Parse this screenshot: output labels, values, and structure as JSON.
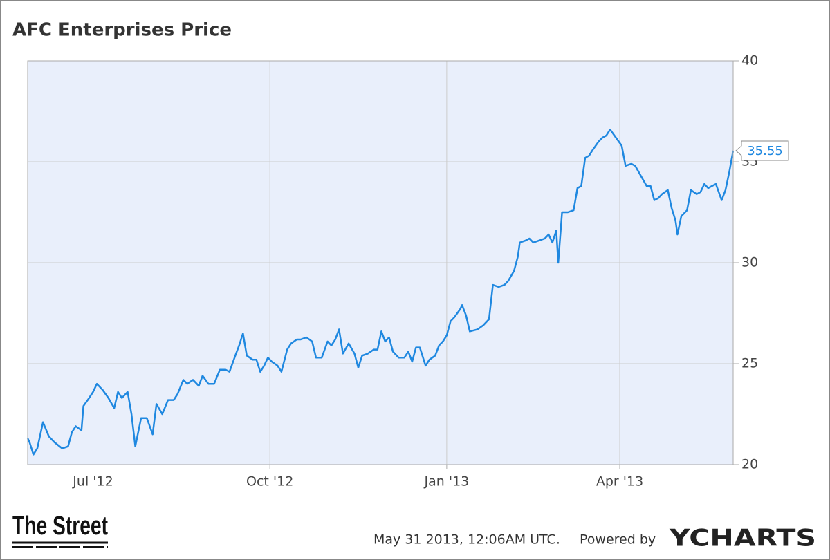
{
  "chart_data": {
    "type": "line",
    "title": "AFC Enterprises Price",
    "x": [
      0,
      1,
      3,
      5,
      8,
      11,
      14,
      18,
      21,
      23,
      25,
      28,
      29,
      32,
      34,
      36,
      39,
      42,
      45,
      47,
      49,
      52,
      54,
      56,
      59,
      62,
      65,
      67,
      70,
      73,
      76,
      78,
      81,
      83,
      86,
      89,
      91,
      94,
      97,
      100,
      103,
      105,
      108,
      110,
      112,
      114,
      117,
      119,
      121,
      123,
      125,
      127,
      130,
      132,
      135,
      137,
      140,
      142,
      145,
      148,
      150,
      153,
      156,
      158,
      160,
      162,
      164,
      167,
      170,
      172,
      174,
      177,
      180,
      182,
      184,
      186,
      188,
      190,
      193,
      196,
      198,
      200,
      202,
      204,
      207,
      209,
      212,
      214,
      216,
      218,
      220,
      222,
      225,
      226,
      228,
      230,
      234,
      237,
      240,
      242,
      245,
      248,
      250,
      253,
      255,
      256,
      259,
      261,
      263,
      266,
      269,
      271,
      273,
      275,
      276,
      278,
      281,
      284,
      286,
      288,
      290,
      292,
      294,
      297,
      299,
      301,
      303,
      306,
      309,
      311,
      314,
      316,
      319,
      322,
      324,
      326,
      328,
      330,
      333,
      335,
      337,
      338,
      340,
      343,
      345,
      348,
      350,
      352,
      354,
      356,
      358,
      361,
      363,
      365,
      367
    ],
    "series": [
      {
        "name": "AFC Enterprises Price",
        "color": "#1f88e0",
        "values": [
          21.3,
          21.1,
          20.5,
          20.8,
          22.1,
          21.4,
          21.1,
          20.8,
          20.9,
          21.6,
          21.9,
          21.7,
          22.9,
          23.3,
          23.6,
          24.0,
          23.7,
          23.3,
          22.8,
          23.6,
          23.3,
          23.6,
          22.5,
          20.9,
          22.3,
          22.3,
          21.5,
          23.0,
          22.5,
          23.2,
          23.2,
          23.5,
          24.2,
          24.0,
          24.2,
          23.9,
          24.4,
          24.0,
          24.0,
          24.7,
          24.7,
          24.6,
          25.4,
          25.9,
          26.5,
          25.4,
          25.2,
          25.2,
          24.6,
          24.9,
          25.3,
          25.1,
          24.9,
          24.6,
          25.7,
          26.0,
          26.2,
          26.2,
          26.3,
          26.1,
          25.3,
          25.3,
          26.1,
          25.9,
          26.2,
          26.7,
          25.5,
          26.0,
          25.5,
          24.8,
          25.4,
          25.5,
          25.7,
          25.7,
          26.6,
          26.1,
          26.3,
          25.6,
          25.3,
          25.3,
          25.6,
          25.1,
          25.8,
          25.8,
          24.9,
          25.2,
          25.4,
          25.9,
          26.1,
          26.4,
          27.1,
          27.3,
          27.7,
          27.9,
          27.4,
          26.6,
          26.7,
          26.9,
          27.2,
          28.9,
          28.8,
          28.9,
          29.1,
          29.6,
          30.3,
          31.0,
          31.1,
          31.2,
          31.0,
          31.1,
          31.2,
          31.4,
          31.0,
          31.6,
          30.0,
          32.5,
          32.5,
          32.6,
          33.7,
          33.8,
          35.2,
          35.3,
          35.6,
          36.0,
          36.2,
          36.3,
          36.6,
          36.2,
          35.8,
          34.8,
          34.9,
          34.8,
          34.3,
          33.8,
          33.8,
          33.1,
          33.2,
          33.4,
          33.6,
          32.7,
          32.1,
          31.4,
          32.3,
          32.6,
          33.6,
          33.4,
          33.5,
          33.9,
          33.7,
          33.8,
          33.9,
          33.1,
          33.6,
          34.5,
          35.55
        ]
      }
    ],
    "xlim": [
      0,
      367
    ],
    "xticks": [
      {
        "value": 34,
        "label": "Jul '12"
      },
      {
        "value": 126,
        "label": "Oct '12"
      },
      {
        "value": 218,
        "label": "Jan '13"
      },
      {
        "value": 308,
        "label": "Apr '13"
      }
    ],
    "ylim": [
      20,
      40
    ],
    "yticks": [
      20,
      25,
      30,
      35,
      40
    ],
    "grid": true,
    "source": "The Street",
    "timestamp": "May 31 2013, 12:06AM UTC.",
    "powered_by": "Powered by",
    "brand": "YCHARTS"
  }
}
